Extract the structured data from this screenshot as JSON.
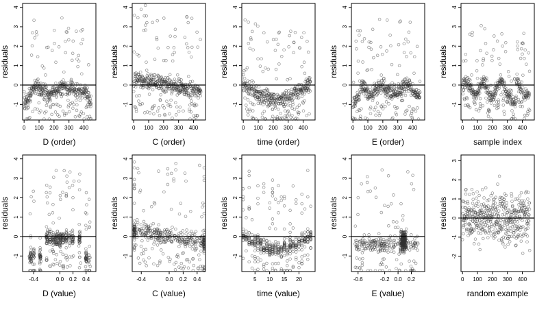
{
  "chart_data": [
    {
      "type": "scatter",
      "xlabel": "D (order)",
      "ylabel": "residuals",
      "xlim": [
        -10,
        480
      ],
      "ylim": [
        -1.8,
        4.2
      ],
      "xticks": [
        "0",
        "100",
        "200",
        "300",
        "400"
      ],
      "yticks": [
        "-1",
        "0",
        "1",
        "2",
        "3",
        "4"
      ],
      "xtick_values": [
        0,
        100,
        200,
        300,
        400
      ],
      "ytick_values": [
        -1,
        0,
        1,
        2,
        3,
        4
      ],
      "reference_line": 0,
      "pattern": "order-D",
      "n_points": 450
    },
    {
      "type": "scatter",
      "xlabel": "C (order)",
      "ylabel": "residuals",
      "xlim": [
        -10,
        480
      ],
      "ylim": [
        -1.8,
        4.2
      ],
      "xticks": [
        "0",
        "100",
        "200",
        "300",
        "400"
      ],
      "yticks": [
        "-1",
        "0",
        "1",
        "2",
        "3",
        "4"
      ],
      "xtick_values": [
        0,
        100,
        200,
        300,
        400
      ],
      "ytick_values": [
        -1,
        0,
        1,
        2,
        3,
        4
      ],
      "reference_line": 0,
      "pattern": "order-C",
      "n_points": 450
    },
    {
      "type": "scatter",
      "xlabel": "time (order)",
      "ylabel": "residuals",
      "xlim": [
        -10,
        480
      ],
      "ylim": [
        -1.8,
        4.2
      ],
      "xticks": [
        "0",
        "100",
        "200",
        "300",
        "400"
      ],
      "yticks": [
        "-1",
        "0",
        "1",
        "2",
        "3",
        "4"
      ],
      "xtick_values": [
        0,
        100,
        200,
        300,
        400
      ],
      "ytick_values": [
        -1,
        0,
        1,
        2,
        3,
        4
      ],
      "reference_line": 0,
      "pattern": "order-time",
      "n_points": 450
    },
    {
      "type": "scatter",
      "xlabel": "E (order)",
      "ylabel": "residuals",
      "xlim": [
        -10,
        480
      ],
      "ylim": [
        -1.8,
        4.2
      ],
      "xticks": [
        "0",
        "100",
        "200",
        "300",
        "400"
      ],
      "yticks": [
        "-1",
        "0",
        "1",
        "2",
        "3",
        "4"
      ],
      "xtick_values": [
        0,
        100,
        200,
        300,
        400
      ],
      "ytick_values": [
        -1,
        0,
        1,
        2,
        3,
        4
      ],
      "reference_line": 0,
      "pattern": "order-E",
      "n_points": 450
    },
    {
      "type": "scatter",
      "xlabel": "sample index",
      "ylabel": "residuals",
      "xlim": [
        -10,
        480
      ],
      "ylim": [
        -1.8,
        4.2
      ],
      "xticks": [
        "0",
        "100",
        "200",
        "300",
        "400"
      ],
      "yticks": [
        "-1",
        "0",
        "1",
        "2",
        "3",
        "4"
      ],
      "xtick_values": [
        0,
        100,
        200,
        300,
        400
      ],
      "ytick_values": [
        -1,
        0,
        1,
        2,
        3,
        4
      ],
      "reference_line": 0,
      "pattern": "sample",
      "n_points": 450
    },
    {
      "type": "scatter",
      "xlabel": "D (value)",
      "ylabel": "residuals",
      "xlim": [
        -0.57,
        0.55
      ],
      "ylim": [
        -1.8,
        4.2
      ],
      "xticks": [
        "-0.4",
        "0.0",
        "0.2",
        "0.4"
      ],
      "yticks": [
        "-1",
        "0",
        "1",
        "2",
        "3",
        "4"
      ],
      "xtick_values": [
        -0.4,
        0.0,
        0.2,
        0.4
      ],
      "ytick_values": [
        -1,
        0,
        1,
        2,
        3,
        4
      ],
      "reference_line": 0,
      "pattern": "value-D",
      "n_points": 450
    },
    {
      "type": "scatter",
      "xlabel": "C (value)",
      "ylabel": "residuals",
      "xlim": [
        -0.53,
        0.52
      ],
      "ylim": [
        -1.8,
        4.2
      ],
      "xticks": [
        "-0.4",
        "0.0",
        "0.2",
        "0.4"
      ],
      "yticks": [
        "-1",
        "0",
        "1",
        "2",
        "3",
        "4"
      ],
      "xtick_values": [
        -0.4,
        0.0,
        0.2,
        0.4
      ],
      "ytick_values": [
        -1,
        0,
        1,
        2,
        3,
        4
      ],
      "reference_line": 0,
      "pattern": "value-C",
      "n_points": 450
    },
    {
      "type": "scatter",
      "xlabel": "time (value)",
      "ylabel": "residuals",
      "xlim": [
        0.5,
        25.5
      ],
      "ylim": [
        -1.8,
        4.2
      ],
      "xticks": [
        "5",
        "10",
        "15",
        "20"
      ],
      "yticks": [
        "-1",
        "0",
        "1",
        "2",
        "3",
        "4"
      ],
      "xtick_values": [
        5,
        10,
        15,
        20
      ],
      "ytick_values": [
        -1,
        0,
        1,
        2,
        3,
        4
      ],
      "reference_line": 0,
      "pattern": "value-time",
      "n_points": 450
    },
    {
      "type": "scatter",
      "xlabel": "E (value)",
      "ylabel": "residuals",
      "xlim": [
        -0.7,
        0.4
      ],
      "ylim": [
        -1.8,
        4.2
      ],
      "xticks": [
        "-0.6",
        "-0.2",
        "0.0",
        "0.2"
      ],
      "yticks": [
        "-1",
        "0",
        "1",
        "2",
        "3",
        "4"
      ],
      "xtick_values": [
        -0.6,
        -0.2,
        0.0,
        0.2
      ],
      "ytick_values": [
        -1,
        0,
        1,
        2,
        3,
        4
      ],
      "reference_line": 0,
      "pattern": "value-E",
      "n_points": 450
    },
    {
      "type": "scatter",
      "xlabel": "random example",
      "ylabel": "residuals",
      "xlim": [
        -10,
        480
      ],
      "ylim": [
        -2.8,
        3.3
      ],
      "xticks": [
        "0",
        "100",
        "200",
        "300",
        "400"
      ],
      "yticks": [
        "-2",
        "-1",
        "0",
        "1",
        "2",
        "3"
      ],
      "xtick_values": [
        0,
        100,
        200,
        300,
        400
      ],
      "ytick_values": [
        -2,
        -1,
        0,
        1,
        2,
        3
      ],
      "reference_line": 0,
      "pattern": "random",
      "n_points": 450
    }
  ]
}
